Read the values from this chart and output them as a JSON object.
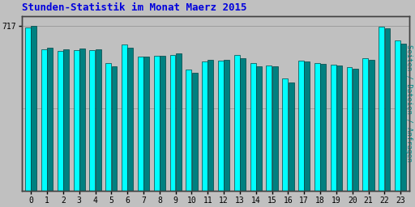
{
  "title": "Stunden-Statistik im Monat Maerz 2015",
  "title_color": "#0000dd",
  "ylabel": "Seiten / Dateien / Anfragen",
  "ylabel_color": "#008888",
  "background_color": "#c0c0c0",
  "plot_bg_color": "#c0c0c0",
  "bar_color_cyan": "#00ffff",
  "bar_color_teal": "#008080",
  "bar_edge_color": "#004444",
  "ytick_label": "717",
  "hours": [
    0,
    1,
    2,
    3,
    4,
    5,
    6,
    7,
    8,
    9,
    10,
    11,
    12,
    13,
    14,
    15,
    16,
    17,
    18,
    19,
    20,
    21,
    22,
    23
  ],
  "vals_cyan": [
    710,
    615,
    608,
    612,
    612,
    555,
    635,
    583,
    586,
    590,
    528,
    562,
    567,
    592,
    555,
    546,
    488,
    565,
    556,
    550,
    537,
    576,
    712,
    653
  ],
  "vals_teal": [
    717,
    622,
    614,
    618,
    614,
    542,
    622,
    582,
    586,
    596,
    512,
    568,
    570,
    578,
    542,
    542,
    470,
    563,
    551,
    546,
    532,
    568,
    705,
    640
  ]
}
